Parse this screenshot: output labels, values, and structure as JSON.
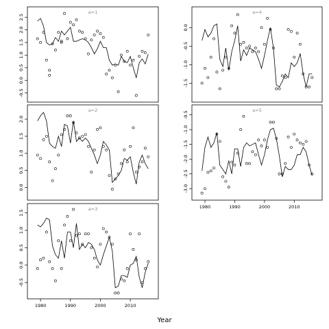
{
  "figure": {
    "xlabel": "Year"
  },
  "chart_data": [
    {
      "type": "line",
      "label": "a=1",
      "xlim": [
        1977,
        2018
      ],
      "ylim": [
        -0.7,
        2.75
      ],
      "yticks": [
        -0.5,
        0.0,
        0.5,
        1.0,
        1.5,
        2.0,
        2.5
      ],
      "ytick_labels": [
        "-0.5",
        "0.0",
        "0.5",
        "1.0",
        "1.5",
        "2.0",
        "2.5"
      ],
      "xticks": [],
      "xtick_labels": [],
      "line": {
        "x": [
          1979,
          1980,
          1981,
          1982,
          1983,
          1984,
          1985,
          1986,
          1987,
          1988,
          1989,
          1990,
          1991,
          1992,
          1993,
          1994,
          1995,
          1996,
          1997,
          1998,
          1999,
          2000,
          2001,
          2002,
          2003,
          2004,
          2005,
          2006,
          2007,
          2008,
          2009,
          2010,
          2011,
          2012,
          2013,
          2014,
          2015,
          2016
        ],
        "y": [
          2.35,
          2.45,
          2.15,
          1.5,
          1.4,
          1.45,
          1.7,
          1.55,
          1.95,
          1.8,
          1.95,
          2.1,
          1.55,
          1.55,
          1.6,
          1.65,
          1.6,
          1.5,
          1.3,
          1.05,
          1.25,
          1.55,
          1.3,
          1.3,
          0.8,
          0.6,
          0.65,
          0.6,
          0.95,
          0.75,
          0.7,
          0.95,
          0.5,
          0.1,
          0.7,
          0.85,
          0.65,
          1.05
        ]
      },
      "points": {
        "x": [
          1979,
          1980,
          1981,
          1982,
          1983,
          1983,
          1984,
          1985,
          1986,
          1987,
          1987,
          1988,
          1989,
          1990,
          1991,
          1992,
          1993,
          1994,
          1995,
          1996,
          1997,
          1998,
          1999,
          2000,
          2001,
          2002,
          2003,
          2004,
          2005,
          2006,
          2007,
          2008,
          2009,
          2010,
          2011,
          2012,
          2013,
          2014,
          2015,
          2016
        ],
        "y": [
          1.65,
          1.5,
          1.9,
          0.8,
          0.4,
          0.2,
          1.45,
          1.2,
          1.9,
          1.55,
          1.5,
          2.65,
          1.65,
          2.3,
          2.2,
          2.4,
          1.95,
          1.9,
          1.65,
          1.05,
          1.6,
          1.8,
          1.95,
          1.85,
          1.7,
          0.25,
          0.4,
          0.1,
          0.6,
          -0.45,
          1.0,
          0.75,
          1.15,
          0.6,
          0.8,
          -0.6,
          0.95,
          1.15,
          1.1,
          1.8
        ]
      }
    },
    {
      "type": "line",
      "label": "a=2",
      "xlim": [
        1977,
        2018
      ],
      "ylim": [
        -0.25,
        2.3
      ],
      "yticks": [
        0.0,
        0.5,
        1.0,
        1.5,
        2.0
      ],
      "ytick_labels": [
        "0.0",
        "0.5",
        "1.0",
        "1.5",
        "2.0"
      ],
      "xticks": [],
      "xtick_labels": [],
      "line": {
        "x": [
          1979,
          1980,
          1981,
          1982,
          1983,
          1984,
          1985,
          1986,
          1987,
          1988,
          1989,
          1990,
          1991,
          1992,
          1993,
          1994,
          1995,
          1996,
          1997,
          1998,
          1999,
          2000,
          2001,
          2002,
          2003,
          2004,
          2005,
          2006,
          2007,
          2008,
          2009,
          2010,
          2011,
          2012,
          2013,
          2014,
          2015,
          2016
        ],
        "y": [
          1.95,
          2.1,
          2.2,
          1.95,
          1.3,
          1.2,
          1.15,
          1.5,
          1.2,
          1.85,
          1.8,
          1.3,
          1.95,
          1.35,
          1.45,
          1.35,
          1.45,
          1.35,
          1.15,
          0.95,
          0.7,
          0.95,
          1.35,
          1.25,
          1.1,
          0.15,
          0.25,
          0.35,
          0.5,
          0.85,
          0.8,
          0.9,
          0.45,
          0.1,
          0.75,
          0.95,
          0.7,
          0.55
        ]
      },
      "points": {
        "x": [
          1979,
          1980,
          1981,
          1982,
          1983,
          1984,
          1985,
          1986,
          1987,
          1988,
          1989,
          1990,
          1991,
          1992,
          1993,
          1994,
          1995,
          1996,
          1997,
          1998,
          1999,
          2000,
          2001,
          2002,
          2003,
          2004,
          2005,
          2006,
          2007,
          2008,
          2009,
          2010,
          2011,
          2012,
          2013,
          2014,
          2015,
          2016
        ],
        "y": [
          0.95,
          0.85,
          1.4,
          1.5,
          0.75,
          0.2,
          0.55,
          0.95,
          1.55,
          1.7,
          2.1,
          2.1,
          1.9,
          1.6,
          1.45,
          1.5,
          1.55,
          1.2,
          0.45,
          1.1,
          1.7,
          1.75,
          1.2,
          1.1,
          0.35,
          -0.05,
          0.25,
          0.4,
          0.7,
          1.1,
          0.75,
          1.2,
          1.75,
          0.45,
          0.6,
          0.75,
          1.15,
          0.9
        ]
      }
    },
    {
      "type": "line",
      "label": "a=3",
      "xlim": [
        1977,
        2018
      ],
      "ylim": [
        -0.85,
        1.65
      ],
      "yticks": [
        -0.5,
        0.0,
        0.5,
        1.0,
        1.5
      ],
      "ytick_labels": [
        "-0.5",
        "0.0",
        "0.5",
        "1.0",
        "1.5"
      ],
      "xticks": [
        1980,
        1990,
        2000,
        2010
      ],
      "xtick_labels": [
        "1980",
        "1990",
        "2000",
        "2010"
      ],
      "line": {
        "x": [
          1979,
          1980,
          1981,
          1982,
          1983,
          1984,
          1985,
          1986,
          1987,
          1988,
          1989,
          1990,
          1991,
          1992,
          1993,
          1994,
          1995,
          1996,
          1997,
          1998,
          1999,
          2000,
          2001,
          2002,
          2003,
          2004,
          2005,
          2006,
          2007,
          2008,
          2009,
          2010,
          2011,
          2012,
          2013,
          2014,
          2015,
          2016
        ],
        "y": [
          1.15,
          1.1,
          1.2,
          1.35,
          1.3,
          0.55,
          0.3,
          0.2,
          0.7,
          0.2,
          0.95,
          0.95,
          0.5,
          1.2,
          0.45,
          0.6,
          0.5,
          0.65,
          0.6,
          0.45,
          0.15,
          0.0,
          0.3,
          0.55,
          0.8,
          0.4,
          -0.65,
          -0.6,
          -0.3,
          -0.3,
          -0.35,
          0.0,
          0.05,
          0.25,
          -0.35,
          -0.65,
          -0.2,
          0.05
        ]
      },
      "points": {
        "x": [
          1979,
          1980,
          1981,
          1982,
          1983,
          1984,
          1985,
          1986,
          1987,
          1988,
          1989,
          1990,
          1991,
          1992,
          1993,
          1994,
          1995,
          1996,
          1997,
          1998,
          1999,
          2000,
          2001,
          2002,
          2003,
          2004,
          2005,
          2006,
          2007,
          2008,
          2009,
          2010,
          2011,
          2012,
          2013,
          2014,
          2015,
          2016
        ],
        "y": [
          -0.1,
          0.15,
          0.2,
          0.95,
          0.1,
          -0.1,
          -0.45,
          0.7,
          -0.1,
          1.15,
          1.4,
          0.7,
          1.6,
          0.85,
          0.9,
          0.6,
          0.9,
          0.9,
          0.5,
          0.2,
          -0.05,
          0.6,
          1.05,
          0.95,
          0.8,
          0.6,
          -0.8,
          -0.8,
          -0.4,
          -0.45,
          -0.1,
          0.9,
          0.45,
          0.15,
          0.9,
          -0.5,
          -0.1,
          0.1
        ]
      }
    },
    {
      "type": "line",
      "label": "a=4",
      "xlim": [
        1977,
        2018
      ],
      "ylim": [
        -1.9,
        0.45
      ],
      "yticks": [
        -1.5,
        -1.0,
        -0.5,
        0.0
      ],
      "ytick_labels": [
        "-1.5",
        "-1.0",
        "-0.5",
        "0.0"
      ],
      "xticks": [],
      "xtick_labels": [],
      "line": {
        "x": [
          1979,
          1980,
          1981,
          1982,
          1983,
          1984,
          1985,
          1986,
          1987,
          1988,
          1989,
          1990,
          1991,
          1992,
          1993,
          1994,
          1995,
          1996,
          1997,
          1998,
          1999,
          2000,
          2001,
          2002,
          2003,
          2004,
          2005,
          2006,
          2007,
          2008,
          2009,
          2010,
          2011,
          2012,
          2013,
          2014,
          2015,
          2016
        ],
        "y": [
          -0.35,
          -0.05,
          -0.25,
          -0.15,
          0.05,
          0.1,
          -0.85,
          -1.05,
          -0.55,
          -1.15,
          -0.65,
          -0.35,
          0.05,
          -0.9,
          -0.6,
          -0.75,
          -0.55,
          -0.6,
          -0.65,
          -0.85,
          -1.1,
          -0.75,
          -0.35,
          0.0,
          -0.55,
          -1.55,
          -1.6,
          -1.45,
          -1.25,
          -1.35,
          -0.95,
          -1.05,
          -0.95,
          -0.7,
          -1.25,
          -1.6,
          -1.25,
          -1.25
        ]
      },
      "points": {
        "x": [
          1979,
          1980,
          1981,
          1982,
          1983,
          1984,
          1985,
          1986,
          1987,
          1988,
          1989,
          1990,
          1991,
          1992,
          1993,
          1994,
          1995,
          1996,
          1997,
          1998,
          1999,
          2000,
          2001,
          2002,
          2003,
          2004,
          2005,
          2006,
          2007,
          2008,
          2009,
          2010,
          2011,
          2012,
          2013,
          2014,
          2015,
          2016
        ],
        "y": [
          -1.5,
          -1.1,
          -1.35,
          -0.8,
          -0.3,
          -1.2,
          -1.65,
          -1.15,
          -0.8,
          -1.1,
          0.05,
          -0.15,
          0.35,
          -0.45,
          -0.4,
          -0.55,
          -0.5,
          -0.65,
          -0.55,
          -0.65,
          0.0,
          -0.45,
          0.25,
          -0.05,
          -0.55,
          -1.65,
          -1.65,
          -1.3,
          -1.35,
          -0.05,
          -0.1,
          -0.8,
          -0.15,
          -0.45,
          -1.25,
          -1.6,
          -1.6,
          -1.35
        ]
      }
    },
    {
      "type": "line",
      "label": "a=5",
      "xlim": [
        1977,
        2018
      ],
      "ylim": [
        -3.25,
        -0.3
      ],
      "yticks": [
        -3.0,
        -2.5,
        -2.0,
        -1.5,
        -1.0,
        -0.5
      ],
      "ytick_labels": [
        "-3.0",
        "-2.5",
        "-2.0",
        "-1.5",
        "-1.0",
        "-0.5"
      ],
      "xticks": [
        1980,
        1990,
        2000,
        2010
      ],
      "xtick_labels": [
        "1980",
        "1990",
        "2000",
        "2010"
      ],
      "line": {
        "x": [
          1979,
          1980,
          1981,
          1982,
          1983,
          1984,
          1985,
          1986,
          1987,
          1988,
          1989,
          1990,
          1991,
          1992,
          1993,
          1994,
          1995,
          1996,
          1997,
          1998,
          1999,
          2000,
          2001,
          2002,
          2003,
          2004,
          2005,
          2006,
          2007,
          2008,
          2009,
          2010,
          2011,
          2012,
          2013,
          2014,
          2015,
          2016
        ],
        "y": [
          -2.4,
          -1.6,
          -1.25,
          -1.6,
          -1.45,
          -1.1,
          -2.2,
          -2.35,
          -2.5,
          -2.05,
          -2.5,
          -1.65,
          -1.65,
          -2.25,
          -1.6,
          -1.45,
          -1.55,
          -1.5,
          -1.45,
          -1.85,
          -2.2,
          -1.85,
          -1.35,
          -1.0,
          -0.95,
          -1.3,
          -1.9,
          -2.6,
          -2.25,
          -2.35,
          -2.35,
          -2.2,
          -1.85,
          -1.85,
          -1.6,
          -1.75,
          -2.2,
          -2.55
        ]
      },
      "points": {
        "x": [
          1979,
          1980,
          1981,
          1982,
          1983,
          1984,
          1985,
          1986,
          1987,
          1988,
          1989,
          1990,
          1991,
          1992,
          1993,
          1994,
          1995,
          1996,
          1997,
          1998,
          1999,
          2000,
          2001,
          2002,
          2003,
          2004,
          2005,
          2006,
          2007,
          2008,
          2009,
          2010,
          2011,
          2012,
          2013,
          2014,
          2015,
          2016
        ],
        "y": [
          -3.15,
          -3.0,
          -2.45,
          -2.4,
          -2.3,
          -1.15,
          -1.4,
          -2.6,
          -2.75,
          -2.95,
          -2.1,
          -2.2,
          -1.8,
          -1.0,
          -0.55,
          -2.15,
          -2.15,
          -1.75,
          -1.85,
          -1.35,
          -1.55,
          -1.35,
          -1.6,
          -0.75,
          -0.75,
          -1.3,
          -2.5,
          -2.5,
          -2.15,
          -1.25,
          -1.6,
          -1.15,
          -1.35,
          -1.45,
          -1.5,
          -1.4,
          -2.2,
          -2.5
        ]
      }
    }
  ]
}
